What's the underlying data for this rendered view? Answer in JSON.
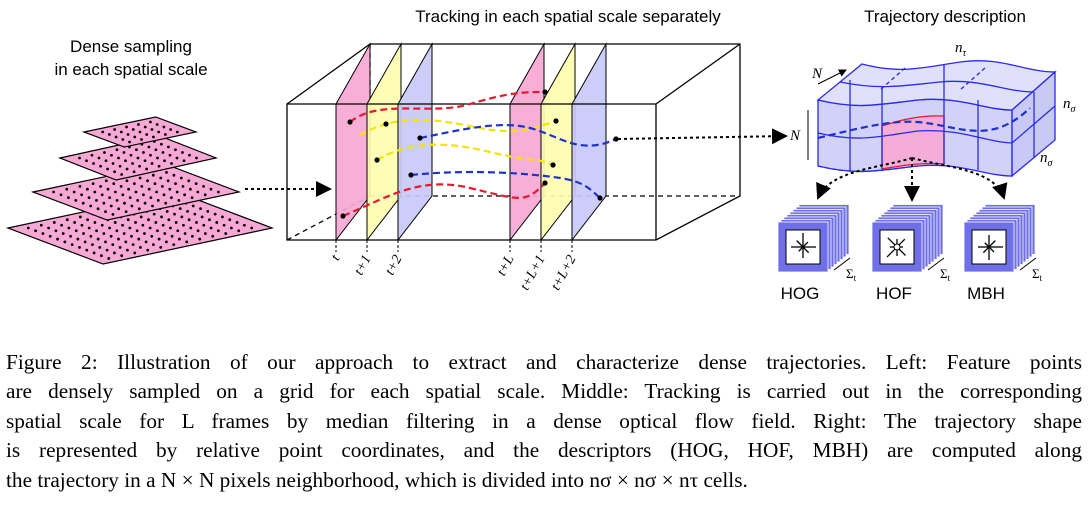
{
  "labels": {
    "dense_sampling_line1": "Dense sampling",
    "dense_sampling_line2": "in each spatial scale",
    "tracking_title": "Tracking in each spatial scale separately",
    "trajectory_title": "Trajectory description",
    "n_tau": "n",
    "n_tau_sub": "τ",
    "n_sigma": "n",
    "n_sigma_sub": "σ",
    "N": "N",
    "sum_t": "Σ",
    "sum_t_sub": "t"
  },
  "frame_labels": [
    "t",
    "t+1",
    "t+2",
    "t+L",
    "t+L+1",
    "t+L+2"
  ],
  "descriptors": [
    "HOG",
    "HOF",
    "MBH"
  ],
  "caption": {
    "lines": [
      "Figure 2: Illustration of our approach to extract and characterize dense trajectories. Left: Feature points",
      "are densely sampled on a grid for each spatial scale. Middle: Tracking is carried out in the corresponding",
      "spatial scale for L frames by median filtering in a dense optical flow field. Right: The trajectory shape",
      "is represented by relative point coordinates, and the descriptors (HOG, HOF, MBH) are computed along",
      "the trajectory in a N × N pixels neighborhood, which is divided into nσ × nσ × nτ cells."
    ]
  },
  "colors": {
    "pink": "#f7a8d4",
    "yellow": "#fdfdb0",
    "blue": "#c9c9f8",
    "red_track": "#e8192c",
    "yellow_track": "#f2e600",
    "blue_track": "#1e33c8",
    "descriptor_blue": "#6f6fe8"
  }
}
